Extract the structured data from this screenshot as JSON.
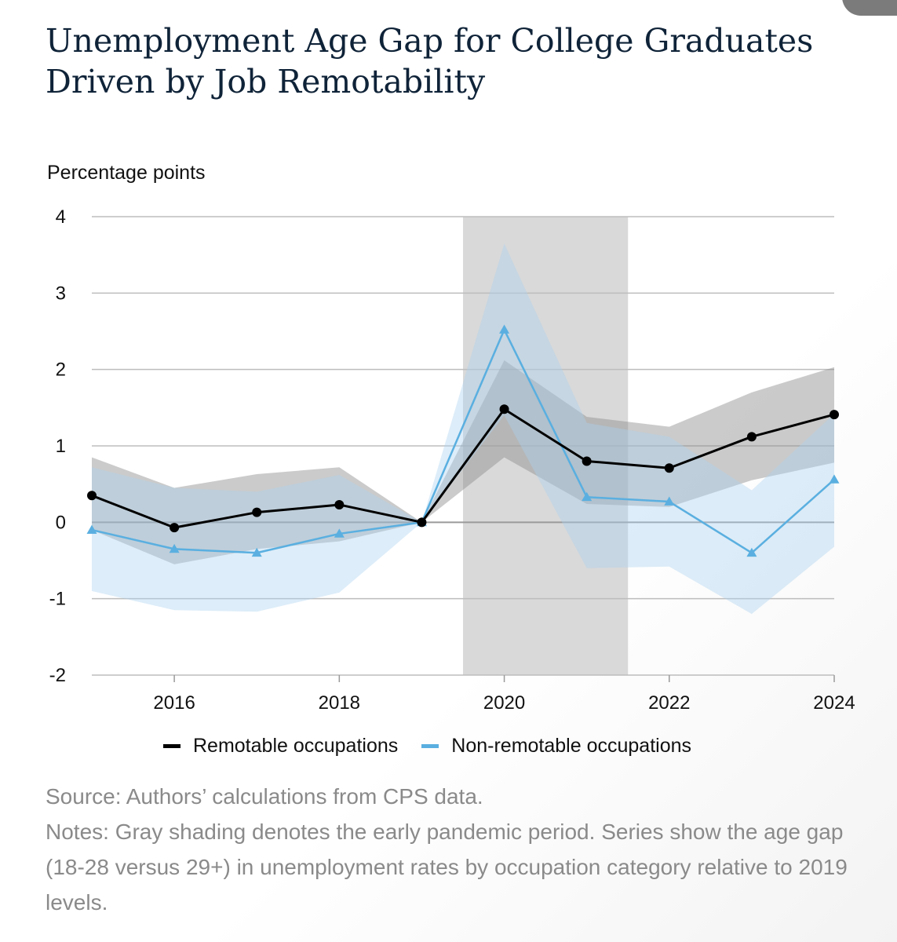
{
  "title": "Unemployment Age Gap for College Graduates Driven by Job Remotability",
  "source": "Source: Authors’ calculations from CPS data.",
  "notes": "Notes: Gray shading denotes the early pandemic period. Series show the age gap (18-28 versus 29+) in unemployment rates by occupation category relative to 2019 levels.",
  "chart_data": {
    "type": "line",
    "title": "Unemployment Age Gap for College Graduates Driven by Job Remotability",
    "xlabel": "",
    "ylabel": "Percentage points",
    "xlim": [
      2015,
      2024
    ],
    "ylim": [
      -2,
      4
    ],
    "x_ticks": [
      2016,
      2018,
      2020,
      2022,
      2024
    ],
    "x_tick_labels": [
      "2016",
      "2018",
      "2020",
      "2022",
      "2024"
    ],
    "y_ticks": [
      -2,
      -1,
      0,
      1,
      2,
      3,
      4
    ],
    "y_tick_labels": [
      "-2",
      "-1",
      "0",
      "1",
      "2",
      "3",
      "4"
    ],
    "grid": "horizontal",
    "legend_position": "bottom",
    "shaded_period": {
      "x_start": 2019.5,
      "x_end": 2021.5,
      "color": "#d9d9d9"
    },
    "x": [
      2015,
      2016,
      2017,
      2018,
      2019,
      2020,
      2021,
      2022,
      2023,
      2024
    ],
    "series": [
      {
        "name": "Remotable occupations",
        "color": "#000000",
        "band_color": "#8c8c8c",
        "marker": "circle",
        "values": [
          0.35,
          -0.07,
          0.13,
          0.23,
          0.0,
          1.48,
          0.8,
          0.71,
          1.12,
          1.41
        ],
        "lower": [
          -0.1,
          -0.55,
          -0.35,
          -0.25,
          0.0,
          0.85,
          0.24,
          0.2,
          0.55,
          0.78
        ],
        "upper": [
          0.85,
          0.45,
          0.63,
          0.72,
          0.0,
          2.12,
          1.38,
          1.25,
          1.7,
          2.03
        ]
      },
      {
        "name": "Non-remotable occupations",
        "color": "#5aafe0",
        "band_color": "#a9d3ef",
        "marker": "triangle",
        "values": [
          -0.1,
          -0.35,
          -0.4,
          -0.15,
          0.0,
          2.52,
          0.33,
          0.27,
          -0.4,
          0.56
        ],
        "lower": [
          -0.9,
          -1.15,
          -1.17,
          -0.92,
          0.0,
          1.4,
          -0.6,
          -0.58,
          -1.2,
          -0.32
        ],
        "upper": [
          0.72,
          0.45,
          0.4,
          0.62,
          0.0,
          3.65,
          1.3,
          1.12,
          0.42,
          1.42
        ]
      }
    ]
  }
}
